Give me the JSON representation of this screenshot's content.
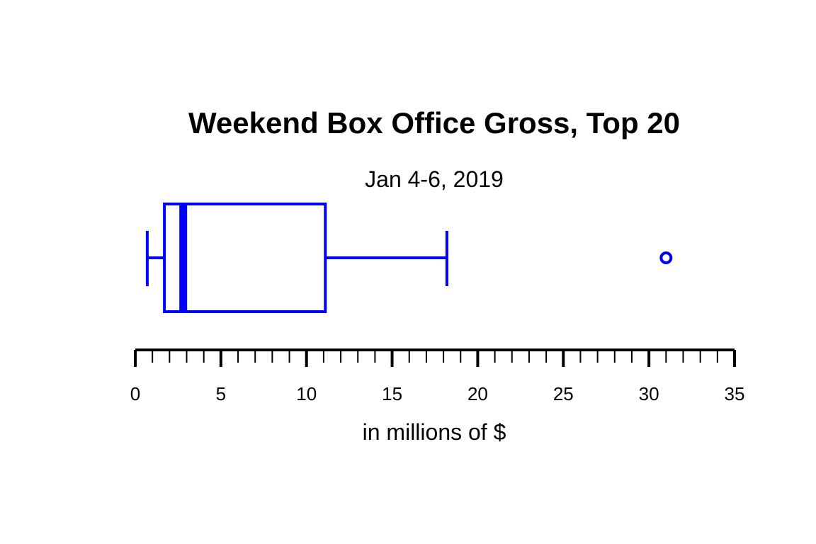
{
  "chart_data": {
    "type": "boxplot",
    "orientation": "horizontal",
    "title": "Weekend Box Office Gross, Top 20",
    "subtitle": "Jan 4-6, 2019",
    "xlabel": "in millions of $",
    "xlim": [
      0,
      35
    ],
    "major_ticks": [
      0,
      5,
      10,
      15,
      20,
      25,
      30,
      35
    ],
    "tick_labels": [
      "0",
      "5",
      "10",
      "15",
      "20",
      "25",
      "30",
      "35"
    ],
    "minor_tick_step": 1,
    "box": {
      "whisker_low": 0.7,
      "q1": 1.7,
      "median": 2.8,
      "q3": 11.1,
      "whisker_high": 18.2
    },
    "outliers": [
      31.0
    ],
    "color": "#0000ff",
    "axis_color": "#000000",
    "grid": false
  }
}
